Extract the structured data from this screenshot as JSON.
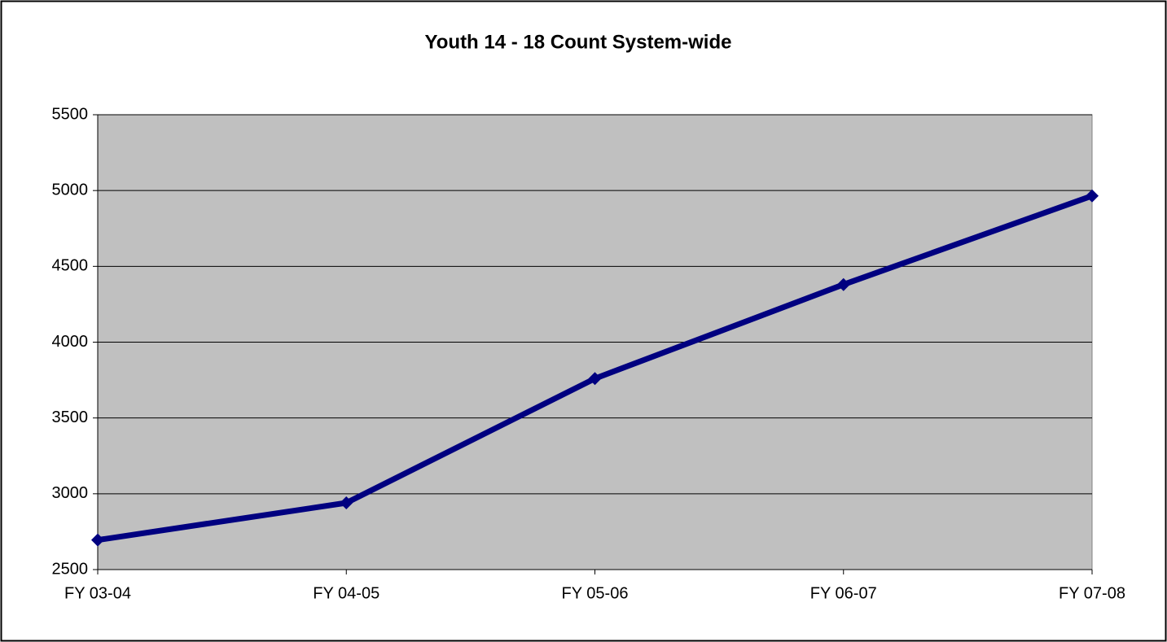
{
  "chart_data": {
    "type": "line",
    "title": "Youth 14 - 18 Count System-wide",
    "categories": [
      "FY 03-04",
      "FY 04-05",
      "FY 05-06",
      "FY 06-07",
      "FY 07-08"
    ],
    "series": [
      {
        "name": "Youth 14 - 18 Count",
        "color": "#000080",
        "values": [
          2695,
          2940,
          3760,
          4380,
          4965
        ]
      }
    ],
    "ylim": [
      2500,
      5500
    ],
    "yticks": [
      2500,
      3000,
      3500,
      4000,
      4500,
      5000,
      5500
    ],
    "grid": true,
    "plot_background": "#c0c0c0"
  }
}
